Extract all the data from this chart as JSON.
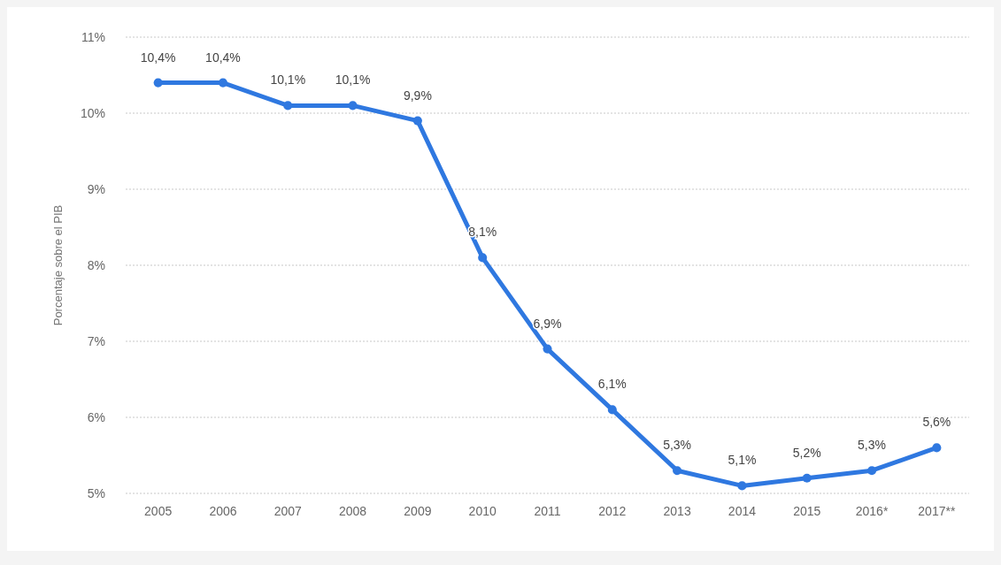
{
  "chart_data": {
    "type": "line",
    "ylabel": "Porcentaje sobre el PIB",
    "categories": [
      "2005",
      "2006",
      "2007",
      "2008",
      "2009",
      "2010",
      "2011",
      "2012",
      "2013",
      "2014",
      "2015",
      "2016*",
      "2017**"
    ],
    "series": [
      {
        "color": "#2f78e0",
        "values": [
          10.4,
          10.4,
          10.1,
          10.1,
          9.9,
          8.1,
          6.9,
          6.1,
          5.3,
          5.1,
          5.2,
          5.3,
          5.6
        ],
        "value_labels": [
          "10,4%",
          "10,4%",
          "10,1%",
          "10,1%",
          "9,9%",
          "8,1%",
          "6,9%",
          "6,1%",
          "5,3%",
          "5,1%",
          "5,2%",
          "5,3%",
          "5,6%"
        ]
      }
    ],
    "ylim": [
      5,
      11
    ],
    "yticks": [
      {
        "value": 5,
        "label": "5%"
      },
      {
        "value": 6,
        "label": "6%"
      },
      {
        "value": 7,
        "label": "7%"
      },
      {
        "value": 8,
        "label": "8%"
      },
      {
        "value": 9,
        "label": "9%"
      },
      {
        "value": 10,
        "label": "10%"
      },
      {
        "value": 11,
        "label": "11%"
      }
    ],
    "grid": "y",
    "marker": "circle",
    "line_style": "solid"
  }
}
